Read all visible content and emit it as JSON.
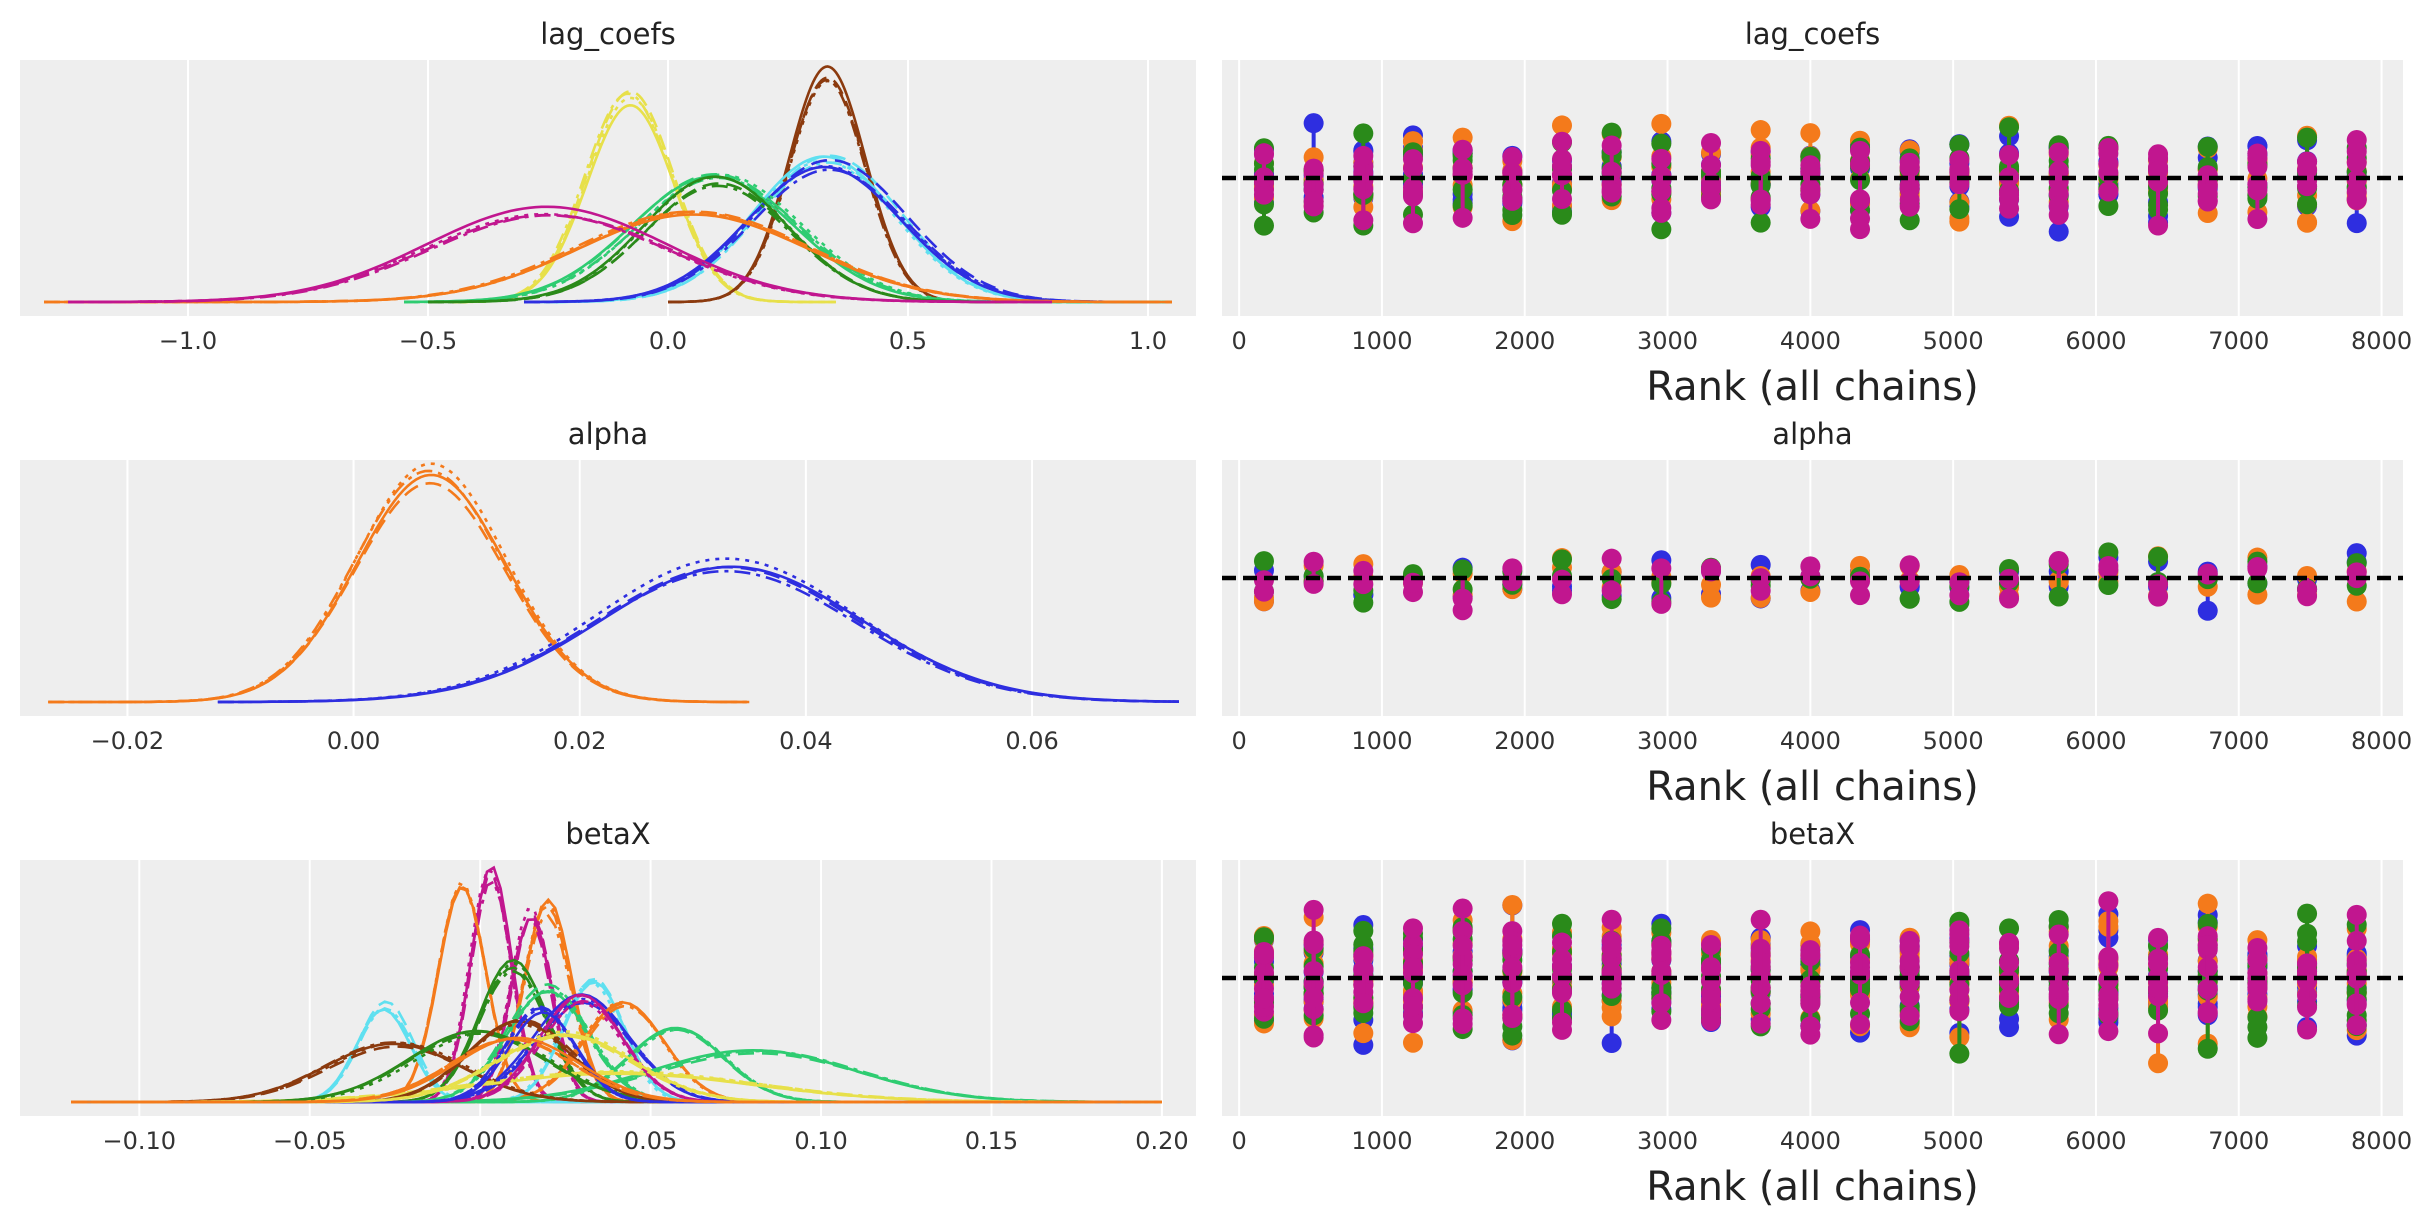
{
  "figure": {
    "rows": [
      {
        "variable": "lag_coefs",
        "kde": {
          "title": "lag_coefs",
          "xlim": [
            -1.35,
            1.1
          ],
          "xticks": [
            -1.0,
            -0.5,
            0.0,
            0.5,
            1.0
          ],
          "xtick_labels": [
            "−1.0",
            "−0.5",
            "0.0",
            "0.5",
            "1.0"
          ],
          "series": [
            {
              "color": "#e7e04a",
              "mean": -0.08,
              "sd": 0.09,
              "height": 0.88,
              "lo": -0.45,
              "hi": 0.35
            },
            {
              "color": "#8b3a0e",
              "mean": 0.33,
              "sd": 0.08,
              "height": 1.0,
              "lo": 0.0,
              "hi": 0.7
            },
            {
              "color": "#5fe0f0",
              "mean": 0.33,
              "sd": 0.15,
              "height": 0.62,
              "lo": -0.3,
              "hi": 1.05
            },
            {
              "color": "#2e2ee0",
              "mean": 0.33,
              "sd": 0.16,
              "height": 0.6,
              "lo": -0.3,
              "hi": 1.0
            },
            {
              "color": "#2ecc71",
              "mean": 0.1,
              "sd": 0.17,
              "height": 0.56,
              "lo": -0.55,
              "hi": 1.05
            },
            {
              "color": "#2a8a1a",
              "mean": 0.1,
              "sd": 0.15,
              "height": 0.53,
              "lo": -0.5,
              "hi": 0.7
            },
            {
              "color": "#f47a1b",
              "mean": 0.05,
              "sd": 0.24,
              "height": 0.4,
              "lo": -1.3,
              "hi": 1.05
            },
            {
              "color": "#c1168f",
              "mean": -0.25,
              "sd": 0.25,
              "height": 0.4,
              "lo": -1.25,
              "hi": 0.8
            }
          ]
        },
        "rank": {
          "title": "lag_coefs",
          "xlabel": "Rank (all chains)",
          "xlim": [
            -120,
            8150
          ],
          "xticks": [
            0,
            1000,
            2000,
            3000,
            4000,
            5000,
            6000,
            7000,
            8000
          ],
          "xtick_labels": [
            "0",
            "1000",
            "2000",
            "3000",
            "4000",
            "5000",
            "6000",
            "7000",
            "8000"
          ],
          "spread": 0.1
        }
      },
      {
        "variable": "alpha",
        "kde": {
          "title": "alpha",
          "xlim": [
            -0.0295,
            0.0745
          ],
          "xticks": [
            -0.02,
            0.0,
            0.02,
            0.04,
            0.06
          ],
          "xtick_labels": [
            "−0.02",
            "0.00",
            "0.02",
            "0.04",
            "0.06"
          ],
          "series": [
            {
              "color": "#f47a1b",
              "mean": 0.0065,
              "sd": 0.0066,
              "height": 1.0,
              "lo": -0.027,
              "hi": 0.035
            },
            {
              "color": "#2e2ee0",
              "mean": 0.0335,
              "sd": 0.0115,
              "height": 0.6,
              "lo": -0.012,
              "hi": 0.073
            }
          ]
        },
        "rank": {
          "title": "alpha",
          "xlabel": "Rank (all chains)",
          "xlim": [
            -120,
            8150
          ],
          "xticks": [
            0,
            1000,
            2000,
            3000,
            4000,
            5000,
            6000,
            7000,
            8000
          ],
          "xtick_labels": [
            "0",
            "1000",
            "2000",
            "3000",
            "4000",
            "5000",
            "6000",
            "7000",
            "8000"
          ],
          "spread": 0.08
        }
      },
      {
        "variable": "betaX",
        "kde": {
          "title": "betaX",
          "xlim": [
            -0.135,
            0.21
          ],
          "xticks": [
            -0.1,
            -0.05,
            0.0,
            0.05,
            0.1,
            0.15,
            0.2
          ],
          "xtick_labels": [
            "−0.10",
            "−0.05",
            "0.00",
            "0.05",
            "0.10",
            "0.15",
            "0.20"
          ],
          "series": [
            {
              "color": "#c1168f",
              "mean": 0.003,
              "sd": 0.006,
              "height": 1.0,
              "lo": -0.12,
              "hi": 0.2
            },
            {
              "color": "#f47a1b",
              "mean": -0.005,
              "sd": 0.007,
              "height": 0.92,
              "lo": -0.12,
              "hi": 0.2
            },
            {
              "color": "#f47a1b",
              "mean": 0.02,
              "sd": 0.007,
              "height": 0.85,
              "lo": -0.12,
              "hi": 0.2
            },
            {
              "color": "#c1168f",
              "mean": 0.015,
              "sd": 0.006,
              "height": 0.82,
              "lo": -0.12,
              "hi": 0.2
            },
            {
              "color": "#2a8a1a",
              "mean": 0.01,
              "sd": 0.01,
              "height": 0.6,
              "lo": -0.12,
              "hi": 0.2
            },
            {
              "color": "#5fe0f0",
              "mean": 0.033,
              "sd": 0.009,
              "height": 0.55,
              "lo": -0.12,
              "hi": 0.2
            },
            {
              "color": "#5fe0f0",
              "mean": -0.028,
              "sd": 0.008,
              "height": 0.42,
              "lo": -0.12,
              "hi": 0.2
            },
            {
              "color": "#2ecc71",
              "mean": 0.02,
              "sd": 0.012,
              "height": 0.5,
              "lo": -0.12,
              "hi": 0.2
            },
            {
              "color": "#2e2ee0",
              "mean": 0.03,
              "sd": 0.014,
              "height": 0.45,
              "lo": -0.12,
              "hi": 0.2
            },
            {
              "color": "#f47a1b",
              "mean": 0.042,
              "sd": 0.012,
              "height": 0.42,
              "lo": -0.12,
              "hi": 0.2
            },
            {
              "color": "#2ecc71",
              "mean": 0.058,
              "sd": 0.014,
              "height": 0.33,
              "lo": -0.12,
              "hi": 0.2
            },
            {
              "color": "#2ecc71",
              "mean": 0.08,
              "sd": 0.03,
              "height": 0.22,
              "lo": -0.12,
              "hi": 0.2
            },
            {
              "color": "#8b3a0e",
              "mean": -0.025,
              "sd": 0.02,
              "height": 0.25,
              "lo": -0.12,
              "hi": 0.2
            },
            {
              "color": "#e7e04a",
              "mean": 0.04,
              "sd": 0.04,
              "height": 0.13,
              "lo": -0.12,
              "hi": 0.2
            },
            {
              "color": "#2a8a1a",
              "mean": 0.0,
              "sd": 0.02,
              "height": 0.3,
              "lo": -0.12,
              "hi": 0.2
            },
            {
              "color": "#c1168f",
              "mean": 0.03,
              "sd": 0.012,
              "height": 0.45,
              "lo": -0.12,
              "hi": 0.2
            },
            {
              "color": "#8b3a0e",
              "mean": 0.012,
              "sd": 0.015,
              "height": 0.35,
              "lo": -0.12,
              "hi": 0.2
            },
            {
              "color": "#2e2ee0",
              "mean": 0.018,
              "sd": 0.01,
              "height": 0.4,
              "lo": -0.12,
              "hi": 0.2
            },
            {
              "color": "#e7e04a",
              "mean": 0.025,
              "sd": 0.02,
              "height": 0.3,
              "lo": -0.12,
              "hi": 0.2
            },
            {
              "color": "#f47a1b",
              "mean": 0.01,
              "sd": 0.018,
              "height": 0.28,
              "lo": -0.12,
              "hi": 0.2
            }
          ]
        },
        "rank": {
          "title": "betaX",
          "xlabel": "Rank (all chains)",
          "xlim": [
            -120,
            8150
          ],
          "xticks": [
            0,
            1000,
            2000,
            3000,
            4000,
            5000,
            6000,
            7000,
            8000
          ],
          "xtick_labels": [
            "0",
            "1000",
            "2000",
            "3000",
            "4000",
            "5000",
            "6000",
            "7000",
            "8000"
          ],
          "spread": 0.14
        }
      }
    ],
    "chains": [
      {
        "color": "#2e2ee0"
      },
      {
        "color": "#f47a1b"
      },
      {
        "color": "#2a8a1a"
      },
      {
        "color": "#c1168f"
      }
    ]
  },
  "chart_data": [
    {
      "type": "line",
      "title": "lag_coefs",
      "xlabel": "",
      "ylabel": "",
      "xlim": [
        -1.35,
        1.1
      ],
      "grid": true,
      "note_series": "KDE curves per coefficient, chains overlaid"
    },
    {
      "type": "scatter",
      "title": "lag_coefs",
      "xlabel": "Rank (all chains)",
      "ylabel": "",
      "xlim": [
        -120,
        8150
      ],
      "grid": true
    },
    {
      "type": "line",
      "title": "alpha",
      "xlabel": "",
      "ylabel": "",
      "xlim": [
        -0.0295,
        0.0745
      ],
      "grid": true
    },
    {
      "type": "scatter",
      "title": "alpha",
      "xlabel": "Rank (all chains)",
      "ylabel": "",
      "xlim": [
        -120,
        8150
      ],
      "grid": true
    },
    {
      "type": "line",
      "title": "betaX",
      "xlabel": "",
      "ylabel": "",
      "xlim": [
        -0.135,
        0.21
      ],
      "grid": true
    },
    {
      "type": "scatter",
      "title": "betaX",
      "xlabel": "Rank (all chains)",
      "ylabel": "",
      "xlim": [
        -120,
        8150
      ],
      "grid": true
    }
  ]
}
